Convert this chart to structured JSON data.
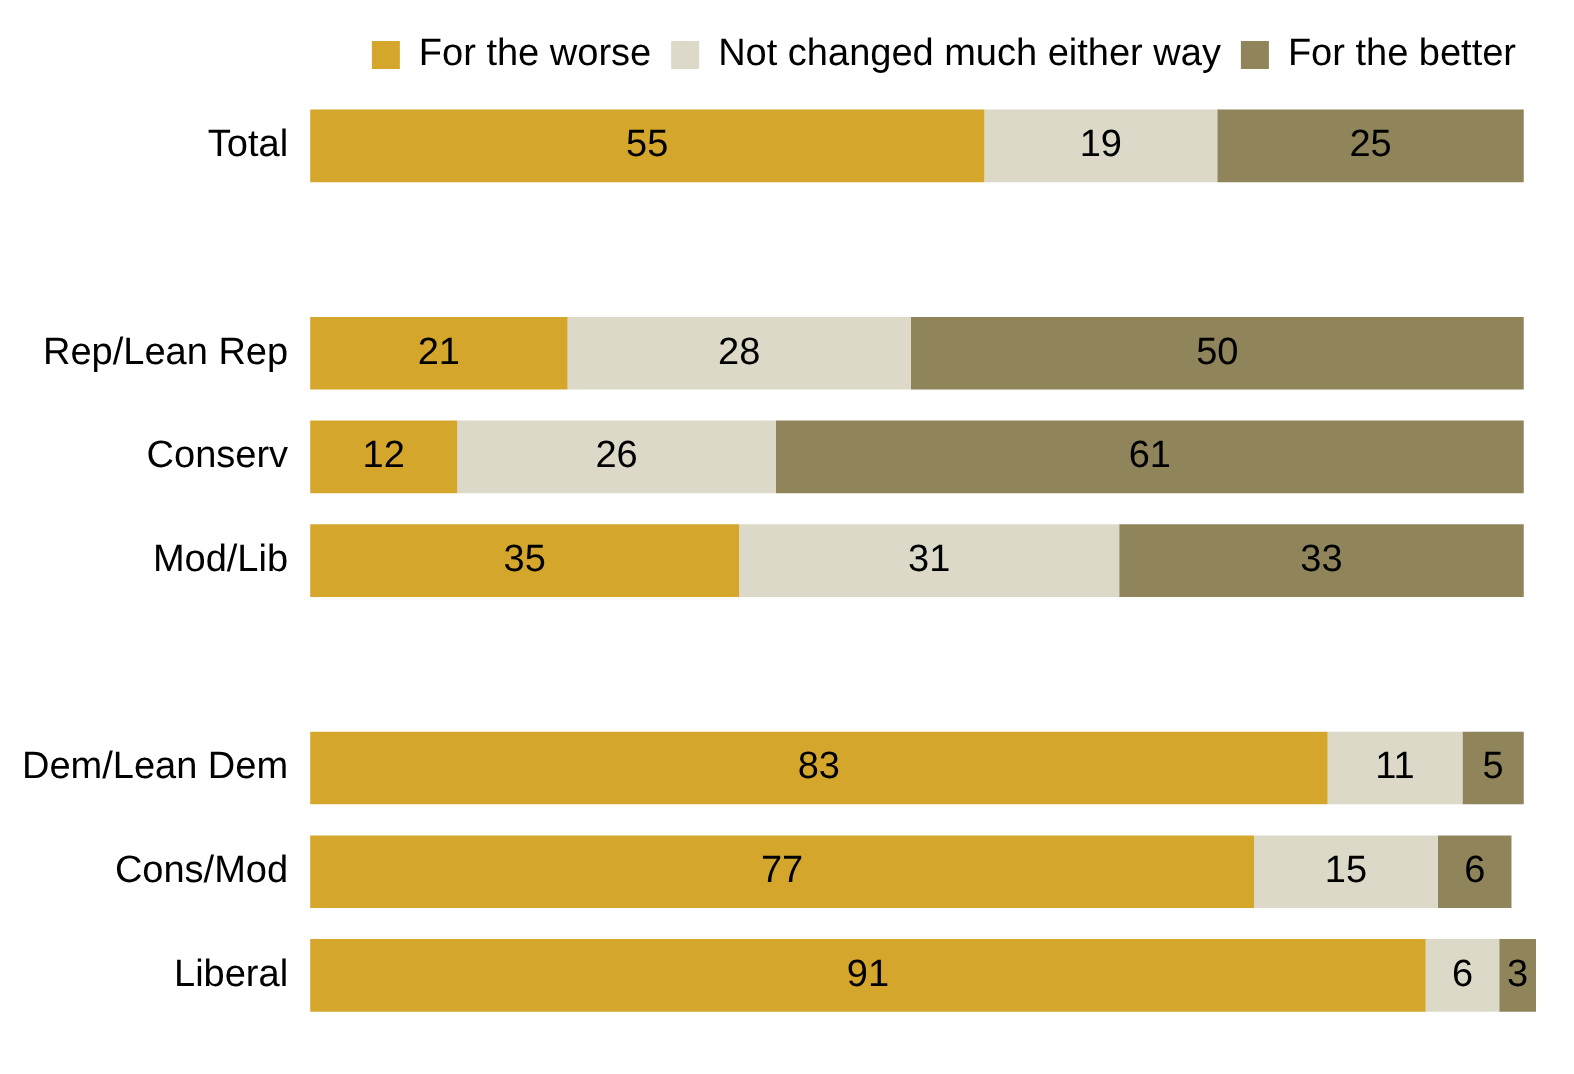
{
  "chart_data": {
    "type": "bar",
    "orientation": "horizontal",
    "stacked": true,
    "legend": "top",
    "data_labels": true,
    "categories": [
      "Total",
      null,
      "Rep/Lean Rep",
      "Conserv",
      "Mod/Lib",
      null,
      "Dem/Lean Dem",
      "Cons/Mod",
      "Liberal"
    ],
    "series": [
      {
        "name": "For the worse",
        "color": "#d4a72c",
        "values": [
          55,
          null,
          21,
          12,
          35,
          null,
          83,
          77,
          91
        ]
      },
      {
        "name": "Not changed much either way",
        "color": "#dcd9c8",
        "values": [
          19,
          null,
          28,
          26,
          31,
          null,
          11,
          15,
          6
        ]
      },
      {
        "name": "For the better",
        "color": "#8f845a",
        "values": [
          25,
          null,
          50,
          61,
          33,
          null,
          5,
          6,
          3
        ]
      }
    ]
  }
}
